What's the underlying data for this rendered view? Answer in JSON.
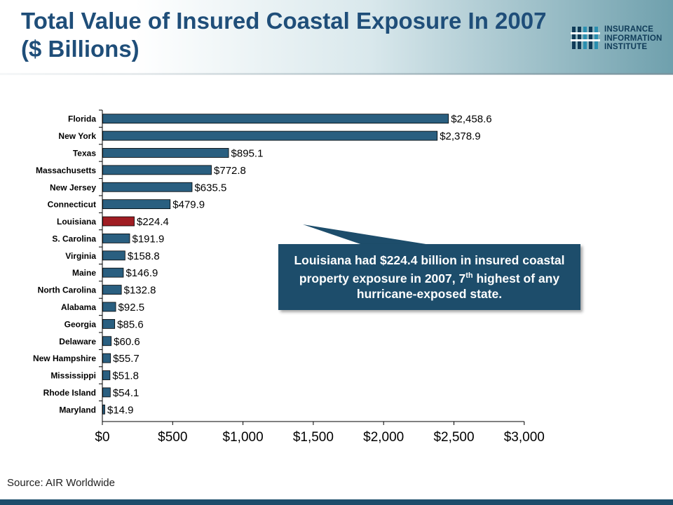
{
  "title": {
    "line1": "Total Value of Insured Coastal Exposure In 2007",
    "line2": "($ Billions)"
  },
  "logo": {
    "icon": "iii-logo-icon",
    "lines": [
      "INSURANCE",
      "INFORMATION",
      "INSTITUTE"
    ]
  },
  "colors": {
    "bar": "#2a5f80",
    "highlight": "#a01d23",
    "callout": "#1d4d6b",
    "title": "#1f4e79"
  },
  "chart_data": {
    "type": "bar",
    "orientation": "horizontal",
    "categories": [
      "Florida",
      "New York",
      "Texas",
      "Massachusetts",
      "New Jersey",
      "Connecticut",
      "Louisiana",
      "S. Carolina",
      "Virginia",
      "Maine",
      "North Carolina",
      "Alabama",
      "Georgia",
      "Delaware",
      "New Hampshire",
      "Mississippi",
      "Rhode Island",
      "Maryland"
    ],
    "values": [
      2458.6,
      2378.9,
      895.1,
      772.8,
      635.5,
      479.9,
      224.4,
      191.9,
      158.8,
      146.9,
      132.8,
      92.5,
      85.6,
      60.6,
      55.7,
      51.8,
      54.1,
      14.9
    ],
    "data_labels": [
      "$2,458.6",
      "$2,378.9",
      "$895.1",
      "$772.8",
      "$635.5",
      "$479.9",
      "$224.4",
      "$191.9",
      "$158.8",
      "$146.9",
      "$132.8",
      "$92.5",
      "$85.6",
      "$60.6",
      "$55.7",
      "$51.8",
      "$54.1",
      "$14.9"
    ],
    "highlight": "Louisiana",
    "xlim": [
      0,
      3000
    ],
    "xticks": [
      0,
      500,
      1000,
      1500,
      2000,
      2500,
      3000
    ],
    "xtick_labels": [
      "$0",
      "$500",
      "$1,000",
      "$1,500",
      "$2,000",
      "$2,500",
      "$3,000"
    ],
    "grid": false
  },
  "callout": {
    "text_before": "Louisiana had $224.4 billion in insured coastal property exposure in 2007, 7",
    "sup": "th",
    "text_after": " highest of any hurricane-exposed state."
  },
  "source": "Source: AIR Worldwide"
}
